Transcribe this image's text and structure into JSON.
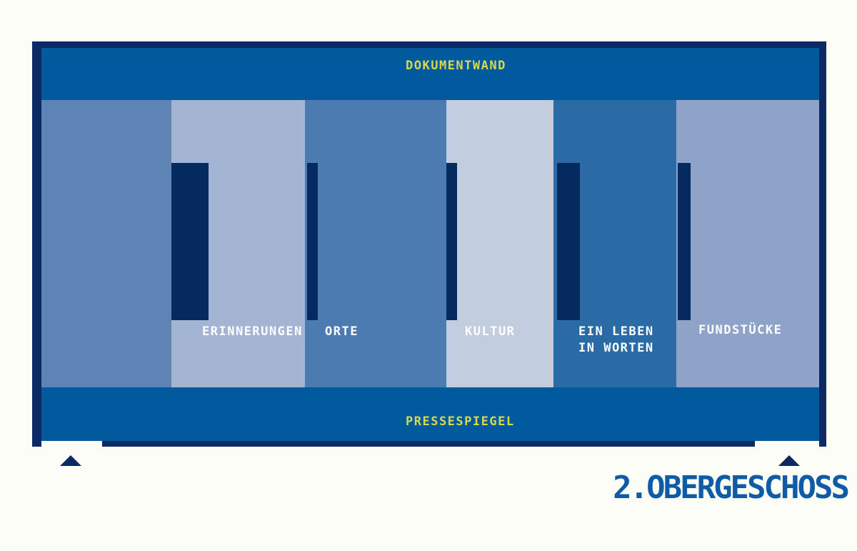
{
  "floor_plan": {
    "title": "2.OBERGESCHOSS",
    "top_band": {
      "label": "DOKUMENTWAND"
    },
    "bottom_band": {
      "label": "PRESSESPIEGEL"
    },
    "rooms": [
      {
        "name": "raum-1",
        "label": "",
        "color": "#5e84b6"
      },
      {
        "name": "erinnerungen",
        "label": "ERINNERUNGEN",
        "color": "#a4b4d3"
      },
      {
        "name": "orte",
        "label": "ORTE",
        "color": "#4c7bb2"
      },
      {
        "name": "kultur",
        "label": "KULTUR",
        "color": "#c3cde0"
      },
      {
        "name": "ein-leben-in-worten",
        "label": "EIN LEBEN",
        "label2": "IN WORTEN",
        "color": "#2a6ba6"
      },
      {
        "name": "fundstuecke",
        "label": "FUNDSTÜCKE",
        "color": "#8fa3c9"
      }
    ],
    "icons": {
      "entrance_arrow_left": "triangle-up",
      "entrance_arrow_right": "triangle-up"
    },
    "colors": {
      "background": "#fdfdf8",
      "outline_navy": "#0b2a63",
      "partition_navy": "#042a60",
      "band_blue": "#015a9e",
      "accent_yellow": "#d6da4a",
      "label_white": "#ffffff",
      "title_blue": "#0f5ca6",
      "arrow_navy": "#0b2a63"
    }
  }
}
